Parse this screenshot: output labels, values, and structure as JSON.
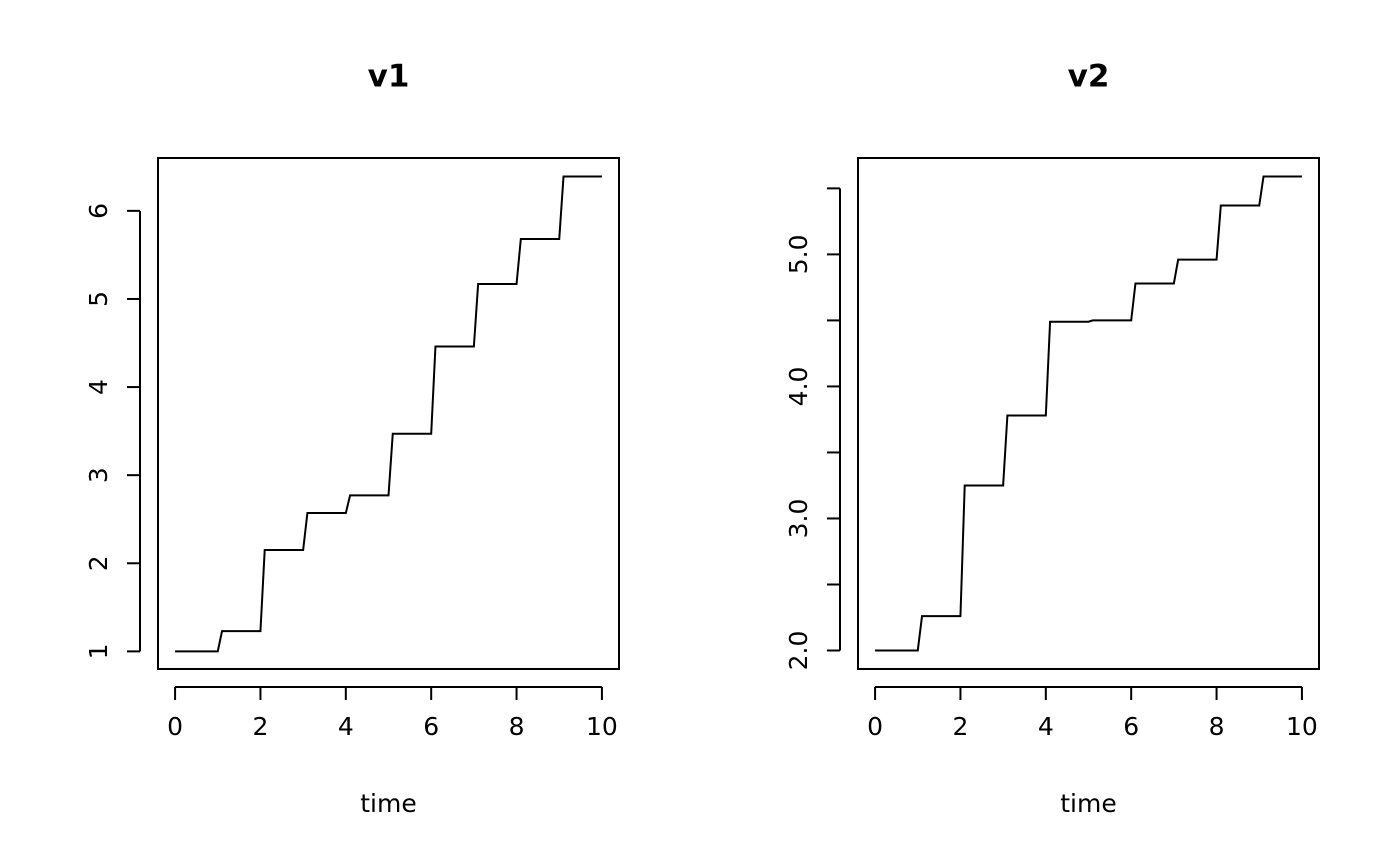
{
  "chart_data": [
    {
      "type": "line",
      "title": "v1",
      "x_label": "time",
      "x": [
        0,
        1,
        1.1,
        2,
        2.1,
        3,
        3.1,
        4,
        4.1,
        5,
        5.1,
        6,
        6.1,
        7,
        7.1,
        8,
        8.1,
        9,
        9.1,
        10
      ],
      "values": [
        1,
        1,
        1.23,
        1.23,
        2.15,
        2.15,
        2.57,
        2.57,
        2.77,
        2.77,
        3.47,
        3.47,
        4.46,
        4.46,
        5.17,
        5.17,
        5.68,
        5.68,
        6.39,
        6.39
      ],
      "color": "#000000",
      "xlim": [
        -0.4,
        10.4
      ],
      "ylim": [
        0.8,
        6.6
      ],
      "xticks": [
        0,
        2,
        4,
        6,
        8,
        10
      ],
      "yticks": [
        1,
        2,
        3,
        4,
        5,
        6
      ]
    },
    {
      "type": "line",
      "title": "v2",
      "x_label": "time",
      "x": [
        0,
        1,
        1.1,
        2,
        2.1,
        3,
        3.1,
        4,
        4.1,
        5,
        5.1,
        6,
        6.1,
        7,
        7.1,
        8,
        8.1,
        9,
        9.1,
        10
      ],
      "values": [
        2,
        2,
        2.26,
        2.26,
        3.25,
        3.25,
        3.78,
        3.78,
        4.49,
        4.49,
        4.5,
        4.5,
        4.78,
        4.78,
        4.96,
        4.96,
        5.37,
        5.37,
        5.59,
        5.59
      ],
      "color": "#000000",
      "xlim": [
        -0.4,
        10.4
      ],
      "ylim": [
        1.86,
        5.73
      ],
      "xticks": [
        0,
        2,
        4,
        6,
        8,
        10
      ],
      "yticks": [
        {
          "value": 2,
          "label": "2.0"
        },
        {
          "value": 2.5,
          "label": null
        },
        {
          "value": 3,
          "label": "3.0"
        },
        {
          "value": 3.5,
          "label": null
        },
        {
          "value": 4,
          "label": "4.0"
        },
        {
          "value": 4.5,
          "label": null
        },
        {
          "value": 5,
          "label": "5.0"
        },
        {
          "value": 5.5,
          "label": null
        }
      ]
    }
  ]
}
